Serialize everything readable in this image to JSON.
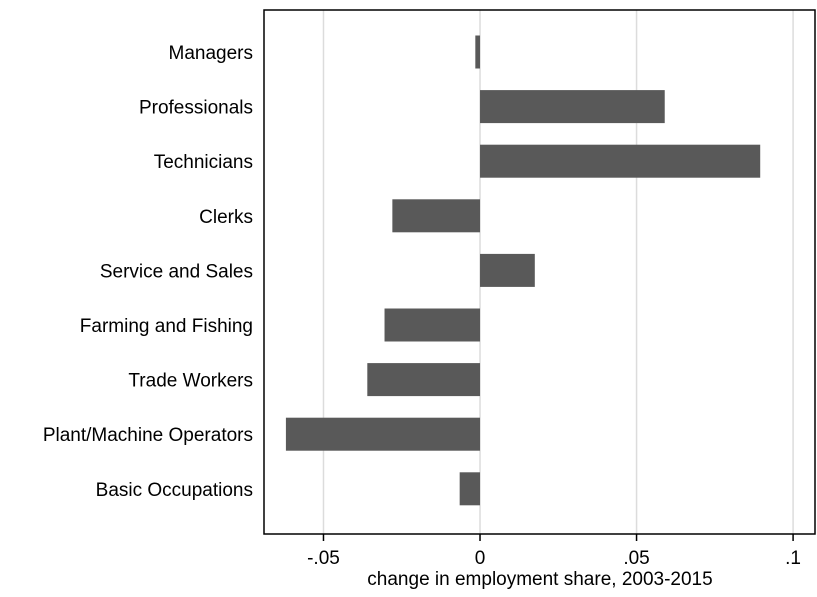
{
  "chart_data": {
    "type": "bar",
    "orientation": "horizontal",
    "categories": [
      "Managers",
      "Professionals",
      "Technicians",
      "Clerks",
      "Service and Sales",
      "Farming and Fishing",
      "Trade Workers",
      "Plant/Machine Operators",
      "Basic Occupations"
    ],
    "values": [
      -0.0015,
      0.059,
      0.0895,
      -0.028,
      0.0175,
      -0.0305,
      -0.036,
      -0.062,
      -0.0065
    ],
    "title": "",
    "xlabel": "change in employment share, 2003-2015",
    "ylabel": "",
    "xlim": [
      -0.069,
      0.107
    ],
    "xticks": [
      -0.05,
      0,
      0.05,
      0.1
    ],
    "xtick_labels": [
      "-.05",
      "0",
      ".05",
      ".1"
    ],
    "grid": "vertical",
    "bar_color": "#595959",
    "grid_color": "#dcdcdc"
  }
}
